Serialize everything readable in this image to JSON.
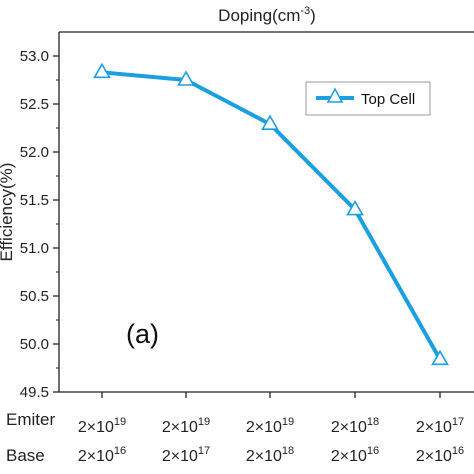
{
  "chart_data": {
    "type": "line",
    "title": "Doping(cm-3)",
    "title_display": {
      "base": "Doping(cm",
      "sup": "-3",
      "close": ")"
    },
    "ylabel": "Efficiency(%)",
    "ylim": [
      49.5,
      53.25
    ],
    "yticks": [
      "49.5",
      "50.0",
      "50.5",
      "51.0",
      "51.5",
      "52.0",
      "52.5",
      "53.0"
    ],
    "row_labels": [
      "Emiter",
      "Base"
    ],
    "categories": [
      {
        "emitter": {
          "mant": "2×10",
          "exp": "19"
        },
        "base": {
          "mant": "2×10",
          "exp": "16"
        }
      },
      {
        "emitter": {
          "mant": "2×10",
          "exp": "19"
        },
        "base": {
          "mant": "2×10",
          "exp": "17"
        }
      },
      {
        "emitter": {
          "mant": "2×10",
          "exp": "19"
        },
        "base": {
          "mant": "2×10",
          "exp": "18"
        }
      },
      {
        "emitter": {
          "mant": "2×10",
          "exp": "18"
        },
        "base": {
          "mant": "2×10",
          "exp": "16"
        }
      },
      {
        "emitter": {
          "mant": "2×10",
          "exp": "17"
        },
        "base": {
          "mant": "2×10",
          "exp": "16"
        }
      }
    ],
    "series": [
      {
        "name": "Top Cell",
        "values": [
          52.83,
          52.75,
          52.29,
          51.4,
          49.84
        ]
      }
    ],
    "legend_position": "top-right",
    "annotation": "(a)",
    "grid": false,
    "colors": {
      "line": "#1a9fe0",
      "marker": "#1a9fe0",
      "marker_fill": "#ffffff",
      "axis": "#222222"
    }
  }
}
